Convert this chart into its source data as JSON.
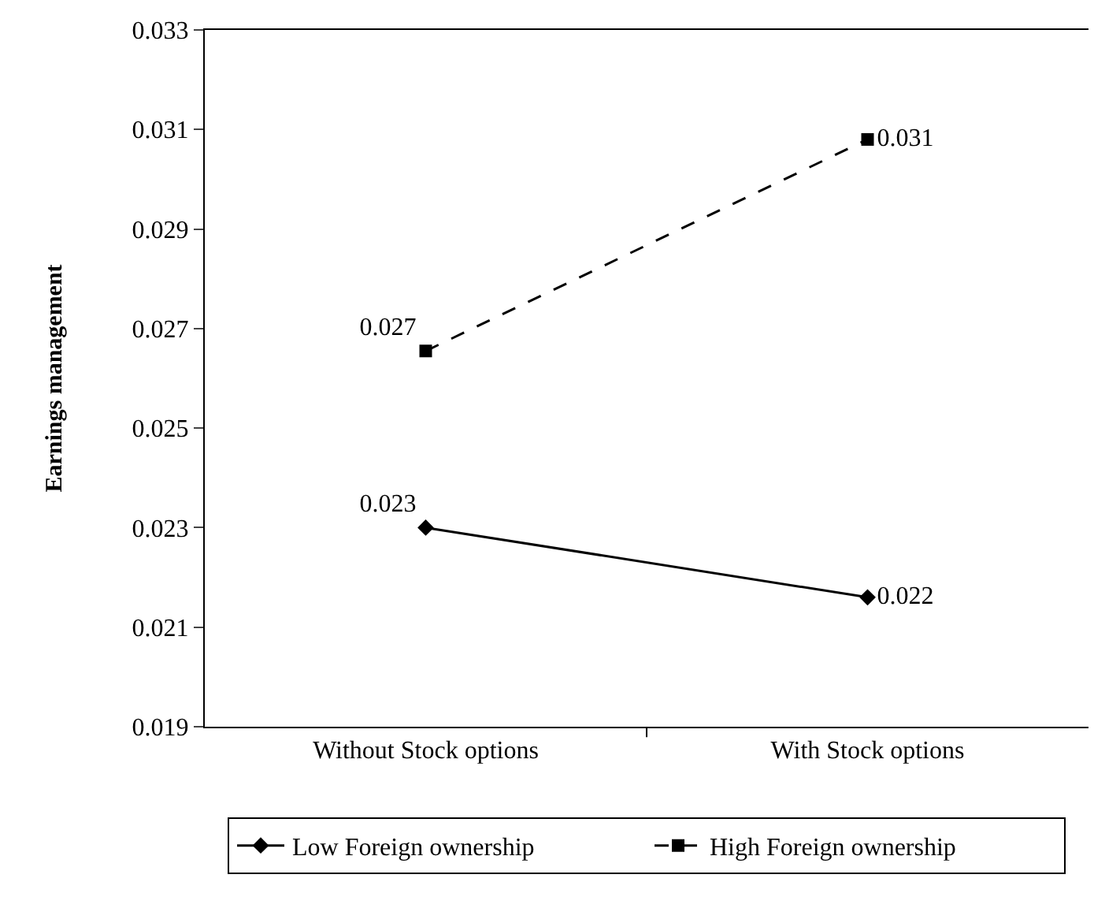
{
  "chart_data": {
    "type": "line",
    "ylabel": "Earnings management",
    "categories": [
      "Without Stock options",
      "With Stock options"
    ],
    "series": [
      {
        "name": "Low Foreign ownership",
        "color": "#000000",
        "values": [
          0.023,
          0.0216
        ],
        "value_labels": [
          "0.023",
          "0.022"
        ],
        "marker": "diamond",
        "line_style": "solid"
      },
      {
        "name": "High Foreign ownership",
        "color": "#000000",
        "values": [
          0.02655,
          0.0308
        ],
        "value_labels": [
          "0.027",
          "0.031"
        ],
        "marker": "square",
        "line_style": "dashed"
      }
    ],
    "ylim": [
      0.019,
      0.033
    ],
    "yticks": [
      0.019,
      0.021,
      0.023,
      0.025,
      0.027,
      0.029,
      0.031,
      0.033
    ],
    "legend": "bottom"
  }
}
